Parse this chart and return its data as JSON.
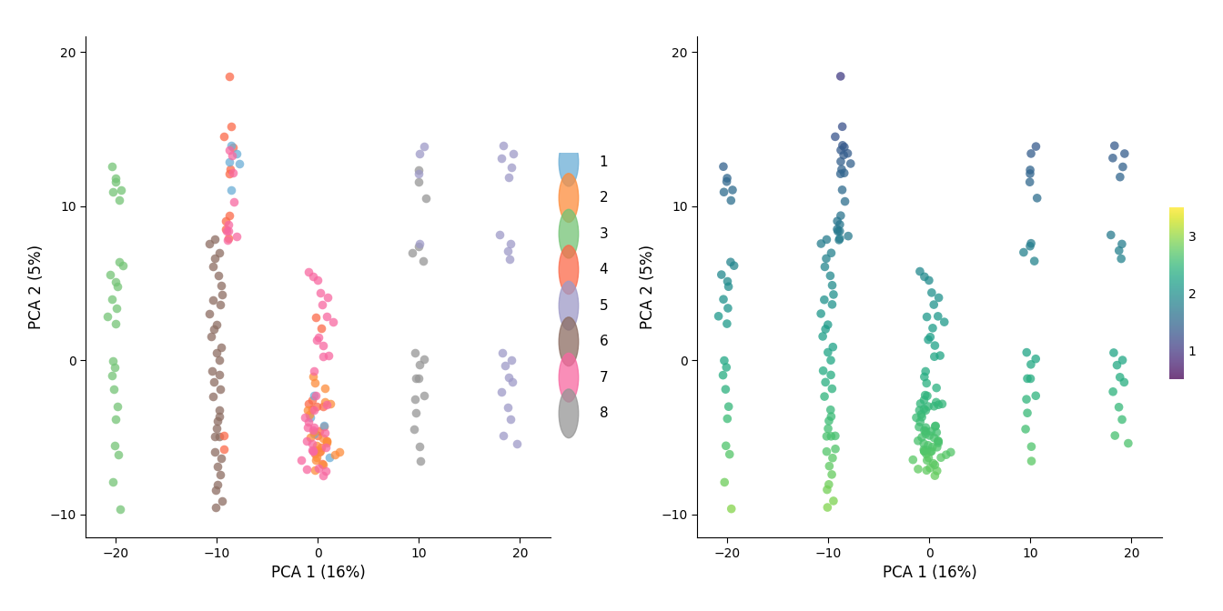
{
  "xlabel": "PCA 1 (16%)",
  "ylabel": "PCA 2 (5%)",
  "xlim": [
    -23,
    23
  ],
  "ylim": [
    -11.5,
    21
  ],
  "xticks": [
    -20,
    -10,
    0,
    10,
    20
  ],
  "yticks": [
    -10,
    0,
    10,
    20
  ],
  "point_size": 48,
  "point_alpha": 0.75,
  "group_colors": {
    "1": "#6baed6",
    "2": "#fd8d3c",
    "3": "#74c476",
    "4": "#fb6a4a",
    "5": "#9e9ac8",
    "6": "#8c6d62",
    "7": "#f768a1",
    "8": "#969696"
  },
  "colorbar_ticks": [
    1,
    2,
    3
  ],
  "colorbar_vmin": 0.5,
  "colorbar_vmax": 3.5,
  "colormap": "viridis",
  "points": {
    "x": [
      -20.5,
      -20.0,
      -20.2,
      -19.8,
      -20.3,
      -19.6,
      -20.0,
      -19.5,
      -20.5,
      -20.1,
      -19.8,
      -20.3,
      -20.0,
      -20.5,
      -19.7,
      -20.2,
      -19.9,
      -20.5,
      -20.0,
      -19.6,
      -20.3,
      -20.1,
      -19.8,
      -20.0,
      -19.5,
      -10.2,
      -10.5,
      -9.8,
      -10.1,
      -10.3,
      -9.7,
      -10.0,
      -9.5,
      -10.2,
      -9.8,
      -10.5,
      -10.1,
      -9.9,
      -10.3,
      -9.6,
      -10.2,
      -9.8,
      -10.5,
      -9.7,
      -10.0,
      -9.5,
      -10.3,
      -10.0,
      -9.8,
      -9.6,
      -10.1,
      -10.1,
      -9.6,
      -10.3,
      -9.8,
      -10.1,
      -9.5,
      -9.9,
      -10.2,
      -9.7,
      -10.0,
      -0.5,
      0.1,
      -0.3,
      0.4,
      -9.6,
      -9.3,
      -9.0,
      -8.7,
      -9.2,
      -8.5,
      -9.0,
      -8.8,
      -9.1,
      -8.6,
      -9.3,
      -8.9,
      -0.2,
      0.3,
      -0.5,
      0.5,
      0.1,
      -0.3,
      0.4,
      -0.1,
      0.2,
      -0.5,
      0.3,
      -8.5,
      -8.2,
      -8.8,
      -8.0,
      -8.5,
      -8.3,
      -8.7,
      -8.2,
      -8.5,
      -1.0,
      -0.5,
      0.0,
      0.5,
      1.0,
      0.5,
      1.0,
      1.5,
      0.0,
      -0.5,
      0.5,
      1.0,
      0.5,
      0.0,
      -0.5,
      -0.3,
      0.2,
      0.7,
      1.2,
      -0.8,
      10.2,
      9.7,
      10.5,
      9.8,
      9.5,
      10.1,
      9.9,
      10.4,
      9.6,
      10.2,
      9.8,
      10.5,
      9.7,
      10.0,
      9.5,
      10.3,
      10.0,
      18.5,
      19.0,
      18.3,
      19.2,
      18.7,
      18.2,
      19.0,
      18.5,
      19.3,
      10.5,
      10.0,
      9.8,
      10.3,
      18.5,
      19.0,
      18.5,
      18.8,
      19.2,
      18.3,
      18.7,
      19.0,
      18.5,
      19.3
    ],
    "y": [
      12.5,
      12.0,
      11.5,
      11.2,
      10.8,
      10.2,
      6.5,
      6.0,
      5.5,
      5.0,
      4.5,
      4.0,
      3.5,
      3.0,
      2.5,
      0.0,
      -0.5,
      -1.0,
      -2.0,
      -3.0,
      -4.0,
      -5.5,
      -6.5,
      -8.0,
      -9.5,
      8.0,
      7.5,
      7.0,
      6.5,
      6.0,
      5.5,
      5.0,
      4.5,
      4.0,
      3.5,
      3.0,
      2.5,
      2.0,
      1.5,
      1.0,
      0.5,
      0.0,
      -0.5,
      -1.0,
      -1.5,
      -2.0,
      -2.5,
      -3.0,
      -3.5,
      -4.0,
      -4.5,
      -5.0,
      -5.5,
      -6.0,
      -6.5,
      -7.0,
      -7.5,
      -8.0,
      -8.5,
      -9.0,
      -9.5,
      -2.5,
      -3.0,
      -3.5,
      -4.0,
      -5.0,
      -5.5,
      18.5,
      15.0,
      14.5,
      14.0,
      12.5,
      12.0,
      9.5,
      9.0,
      8.5,
      8.0,
      2.5,
      2.0,
      -2.5,
      -3.0,
      -4.5,
      -5.0,
      -5.5,
      -5.8,
      -6.0,
      -6.2,
      -6.5,
      14.0,
      13.5,
      13.0,
      12.5,
      11.0,
      10.5,
      13.5,
      13.0,
      12.0,
      6.0,
      5.5,
      5.0,
      4.5,
      4.0,
      3.5,
      3.0,
      2.5,
      2.0,
      1.5,
      1.0,
      0.5,
      0.0,
      -0.5,
      -1.0,
      -1.5,
      -2.0,
      -2.5,
      -3.0,
      -3.5,
      12.5,
      11.5,
      10.5,
      7.5,
      7.0,
      6.5,
      0.5,
      0.0,
      -0.5,
      -1.0,
      -1.5,
      -2.0,
      -2.5,
      -3.5,
      -4.5,
      -5.5,
      -6.5,
      14.0,
      13.5,
      13.0,
      12.5,
      12.0,
      8.0,
      7.5,
      7.0,
      6.5,
      14.0,
      13.5,
      12.0,
      7.5,
      0.5,
      0.0,
      -0.5,
      -1.0,
      -1.5,
      -2.0,
      -3.0,
      -4.0,
      -5.0,
      -5.5
    ],
    "group": [
      3,
      3,
      3,
      3,
      3,
      3,
      3,
      3,
      3,
      3,
      3,
      3,
      3,
      3,
      3,
      3,
      3,
      3,
      3,
      3,
      3,
      3,
      3,
      3,
      3,
      6,
      6,
      6,
      6,
      6,
      6,
      6,
      6,
      6,
      6,
      6,
      6,
      6,
      6,
      6,
      6,
      6,
      6,
      6,
      6,
      6,
      6,
      6,
      6,
      6,
      6,
      6,
      6,
      6,
      6,
      6,
      6,
      6,
      6,
      6,
      6,
      4,
      4,
      4,
      4,
      4,
      4,
      4,
      4,
      4,
      4,
      4,
      4,
      4,
      4,
      4,
      4,
      4,
      4,
      4,
      4,
      4,
      4,
      4,
      4,
      4,
      4,
      4,
      1,
      1,
      1,
      1,
      1,
      7,
      7,
      7,
      7,
      7,
      7,
      7,
      7,
      7,
      7,
      7,
      7,
      7,
      7,
      7,
      7,
      7,
      7,
      2,
      2,
      2,
      2,
      2,
      2,
      8,
      8,
      8,
      8,
      8,
      8,
      8,
      8,
      8,
      8,
      8,
      8,
      8,
      8,
      8,
      8,
      8,
      5,
      5,
      5,
      5,
      5,
      5,
      5,
      5,
      5,
      5,
      5,
      5,
      5,
      5,
      5,
      5,
      5,
      5,
      5,
      5,
      5,
      5,
      5
    ]
  }
}
